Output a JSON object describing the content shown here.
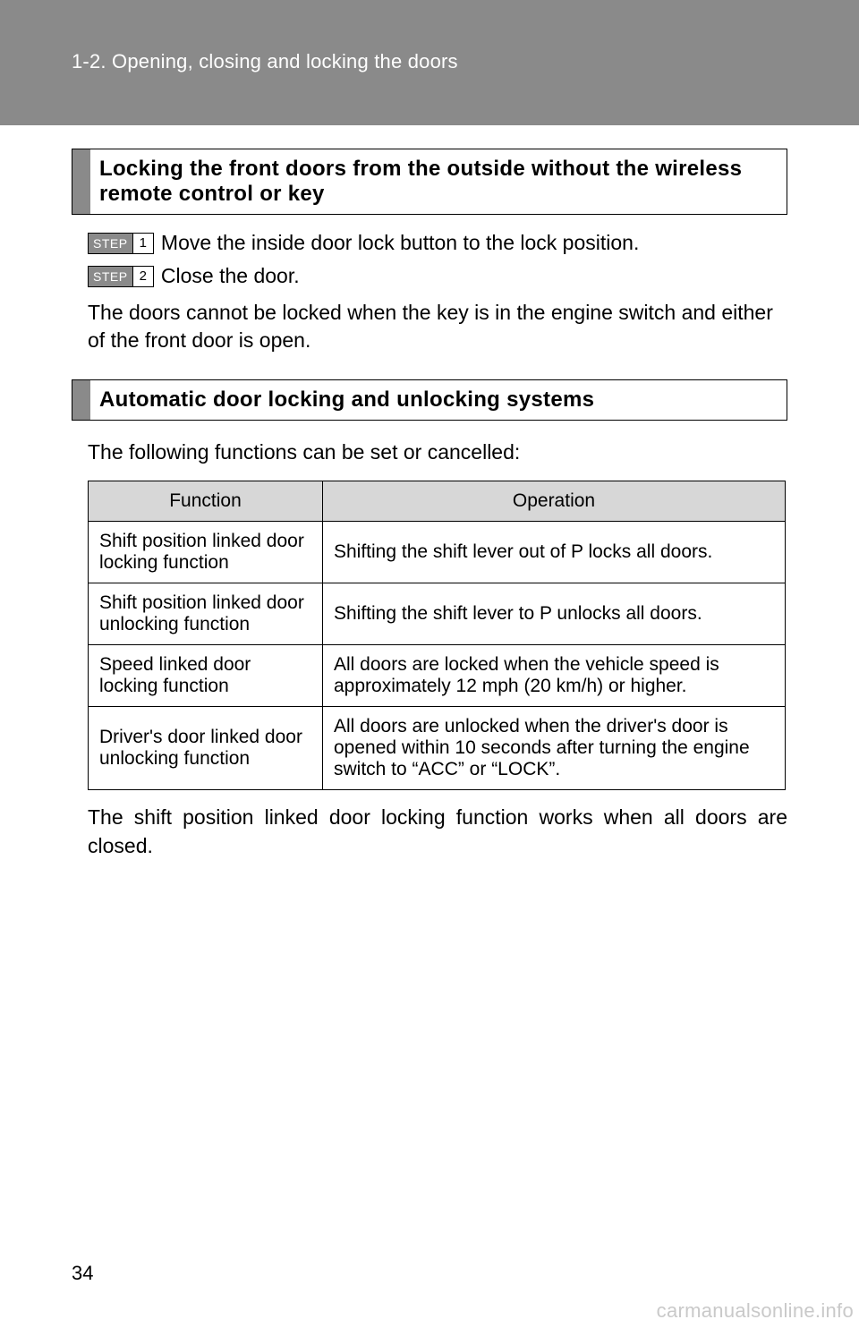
{
  "header": {
    "breadcrumb": "1-2. Opening, closing and locking the doors"
  },
  "section1": {
    "title": "Locking the front doors from the outside without the wireless remote control or key",
    "step_label": "STEP",
    "steps": [
      {
        "num": "1",
        "text": "Move the inside door lock button to the lock position."
      },
      {
        "num": "2",
        "text": "Close the door."
      }
    ],
    "note": "The doors cannot be locked when the key is in the engine switch and either of the front door is open."
  },
  "section2": {
    "title": "Automatic door locking and unlocking systems",
    "intro": "The following functions can be set or cancelled:",
    "table": {
      "columns": [
        "Function",
        "Operation"
      ],
      "rows": [
        [
          "Shift position linked door locking function",
          "Shifting the shift lever out of P locks all doors."
        ],
        [
          "Shift position linked door unlocking function",
          "Shifting the shift lever to P unlocks all doors."
        ],
        [
          "Speed linked door locking function",
          "All doors are locked when the vehicle speed is approximately 12 mph (20 km/h) or higher."
        ],
        [
          "Driver's door linked door unlocking function",
          "All doors are unlocked when the driver's door is opened within 10 seconds after turning the engine switch to “ACC” or “LOCK”."
        ]
      ]
    },
    "after": "The shift position linked door locking function works when all doors are closed."
  },
  "footer": {
    "page": "34",
    "watermark": "carmanualsonline.info"
  },
  "colors": {
    "band": "#8a8a8a",
    "th_bg": "#d7d7d7",
    "watermark": "#c9c9c9"
  }
}
